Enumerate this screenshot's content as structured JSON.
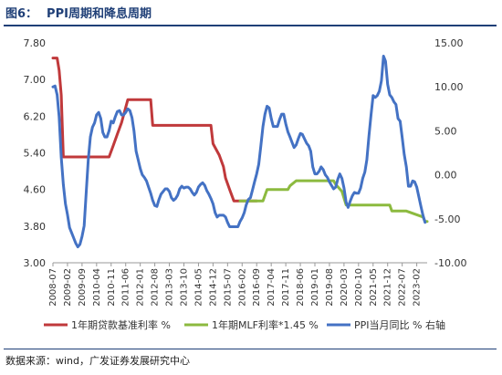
{
  "figure": {
    "label": "图6：",
    "title": "PPI周期和降息周期",
    "source": "数据来源：wind，广发证券发展研究中心"
  },
  "chart_data": {
    "type": "line",
    "title": "PPI周期和降息周期",
    "y_left": {
      "range": [
        3.0,
        7.8
      ],
      "ticks": [
        "7.80",
        "7.00",
        "6.20",
        "5.40",
        "4.60",
        "3.80",
        "3.00"
      ]
    },
    "y_right": {
      "range": [
        -10.0,
        15.0
      ],
      "ticks": [
        "15.00",
        "10.00",
        "5.00",
        "0.00",
        "-5.00",
        "-10.00"
      ]
    },
    "x_ticks": [
      "2008-07",
      "2009-02",
      "2009-09",
      "2010-04",
      "2010-11",
      "2011-06",
      "2012-01",
      "2012-08",
      "2013-03",
      "2013-10",
      "2014-05",
      "2014-12",
      "2015-07",
      "2016-02",
      "2016-09",
      "2017-04",
      "2017-11",
      "2018-06",
      "2019-01",
      "2019-08",
      "2020-03",
      "2020-10",
      "2021-05",
      "2021-12",
      "2022-07",
      "2023-02"
    ],
    "legend_position": "bottom",
    "colors": {
      "lpr": "#c0393b",
      "mlf": "#8cba3f",
      "ppi": "#4472c4"
    },
    "series": [
      {
        "name": "1年期贷款基准利率 %",
        "axis": "left",
        "points": [
          [
            "2008-07",
            7.47
          ],
          [
            "2008-09",
            7.47
          ],
          [
            "2008-10",
            7.2
          ],
          [
            "2008-11",
            6.66
          ],
          [
            "2008-12",
            5.31
          ],
          [
            "2010-10",
            5.31
          ],
          [
            "2010-12",
            5.56
          ],
          [
            "2011-02",
            5.81
          ],
          [
            "2011-04",
            6.06
          ],
          [
            "2011-07",
            6.56
          ],
          [
            "2012-06",
            6.56
          ],
          [
            "2012-07",
            6.0
          ],
          [
            "2014-11",
            6.0
          ],
          [
            "2014-12",
            5.6
          ],
          [
            "2015-03",
            5.35
          ],
          [
            "2015-05",
            5.1
          ],
          [
            "2015-06",
            4.85
          ],
          [
            "2015-08",
            4.6
          ],
          [
            "2015-10",
            4.35
          ],
          [
            "2016-09",
            4.35
          ]
        ]
      },
      {
        "name": "1年期MLF利率*1.45 %",
        "axis": "left",
        "points": [
          [
            "2016-01",
            4.35
          ],
          [
            "2016-12",
            4.35
          ],
          [
            "2017-02",
            4.6
          ],
          [
            "2017-12",
            4.6
          ],
          [
            "2018-01",
            4.68
          ],
          [
            "2018-04",
            4.79
          ],
          [
            "2019-10",
            4.79
          ],
          [
            "2019-11",
            4.71
          ],
          [
            "2020-02",
            4.56
          ],
          [
            "2020-04",
            4.26
          ],
          [
            "2022-01",
            4.26
          ],
          [
            "2022-02",
            4.13
          ],
          [
            "2022-09",
            4.13
          ],
          [
            "2023-05",
            4.0
          ],
          [
            "2023-06",
            3.9
          ],
          [
            "2023-07",
            3.9
          ]
        ]
      },
      {
        "name": "PPI当月同比 % 右轴",
        "axis": "right",
        "points": [
          [
            "2008-07",
            10.0
          ],
          [
            "2008-08",
            10.1
          ],
          [
            "2008-09",
            9.1
          ],
          [
            "2008-10",
            6.6
          ],
          [
            "2008-11",
            2.0
          ],
          [
            "2008-12",
            -1.1
          ],
          [
            "2009-01",
            -3.3
          ],
          [
            "2009-02",
            -4.5
          ],
          [
            "2009-03",
            -6.0
          ],
          [
            "2009-04",
            -6.6
          ],
          [
            "2009-05",
            -7.2
          ],
          [
            "2009-06",
            -7.8
          ],
          [
            "2009-07",
            -8.2
          ],
          [
            "2009-08",
            -7.9
          ],
          [
            "2009-09",
            -7.0
          ],
          [
            "2009-10",
            -5.8
          ],
          [
            "2009-11",
            -2.1
          ],
          [
            "2009-12",
            1.7
          ],
          [
            "2010-01",
            4.3
          ],
          [
            "2010-02",
            5.4
          ],
          [
            "2010-03",
            5.9
          ],
          [
            "2010-04",
            6.8
          ],
          [
            "2010-05",
            7.1
          ],
          [
            "2010-06",
            6.4
          ],
          [
            "2010-07",
            4.8
          ],
          [
            "2010-08",
            4.3
          ],
          [
            "2010-09",
            4.3
          ],
          [
            "2010-10",
            5.0
          ],
          [
            "2010-11",
            6.1
          ],
          [
            "2010-12",
            5.9
          ],
          [
            "2011-01",
            6.6
          ],
          [
            "2011-02",
            7.2
          ],
          [
            "2011-03",
            7.3
          ],
          [
            "2011-04",
            6.8
          ],
          [
            "2011-05",
            6.8
          ],
          [
            "2011-06",
            7.1
          ],
          [
            "2011-07",
            7.5
          ],
          [
            "2011-08",
            7.3
          ],
          [
            "2011-09",
            6.5
          ],
          [
            "2011-10",
            5.0
          ],
          [
            "2011-11",
            2.7
          ],
          [
            "2011-12",
            1.7
          ],
          [
            "2012-01",
            0.7
          ],
          [
            "2012-02",
            0.0
          ],
          [
            "2012-03",
            -0.3
          ],
          [
            "2012-04",
            -0.7
          ],
          [
            "2012-05",
            -1.4
          ],
          [
            "2012-06",
            -2.1
          ],
          [
            "2012-07",
            -2.9
          ],
          [
            "2012-08",
            -3.5
          ],
          [
            "2012-09",
            -3.6
          ],
          [
            "2012-10",
            -2.8
          ],
          [
            "2012-11",
            -2.2
          ],
          [
            "2012-12",
            -1.9
          ],
          [
            "2013-01",
            -1.6
          ],
          [
            "2013-02",
            -1.6
          ],
          [
            "2013-03",
            -1.9
          ],
          [
            "2013-04",
            -2.6
          ],
          [
            "2013-05",
            -2.9
          ],
          [
            "2013-06",
            -2.7
          ],
          [
            "2013-07",
            -2.3
          ],
          [
            "2013-08",
            -1.6
          ],
          [
            "2013-09",
            -1.3
          ],
          [
            "2013-10",
            -1.5
          ],
          [
            "2013-11",
            -1.4
          ],
          [
            "2013-12",
            -1.4
          ],
          [
            "2014-01",
            -1.6
          ],
          [
            "2014-02",
            -2.0
          ],
          [
            "2014-03",
            -2.3
          ],
          [
            "2014-04",
            -2.0
          ],
          [
            "2014-05",
            -1.4
          ],
          [
            "2014-06",
            -1.1
          ],
          [
            "2014-07",
            -0.9
          ],
          [
            "2014-08",
            -1.2
          ],
          [
            "2014-09",
            -1.8
          ],
          [
            "2014-10",
            -2.2
          ],
          [
            "2014-11",
            -2.7
          ],
          [
            "2014-12",
            -3.3
          ],
          [
            "2015-01",
            -4.3
          ],
          [
            "2015-02",
            -4.8
          ],
          [
            "2015-03",
            -4.6
          ],
          [
            "2015-04",
            -4.6
          ],
          [
            "2015-05",
            -4.6
          ],
          [
            "2015-06",
            -4.8
          ],
          [
            "2015-07",
            -5.4
          ],
          [
            "2015-08",
            -5.9
          ],
          [
            "2015-09",
            -5.9
          ],
          [
            "2015-10",
            -5.9
          ],
          [
            "2015-11",
            -5.9
          ],
          [
            "2015-12",
            -5.9
          ],
          [
            "2016-01",
            -5.3
          ],
          [
            "2016-02",
            -4.9
          ],
          [
            "2016-03",
            -4.3
          ],
          [
            "2016-04",
            -3.4
          ],
          [
            "2016-05",
            -2.8
          ],
          [
            "2016-06",
            -2.6
          ],
          [
            "2016-07",
            -1.7
          ],
          [
            "2016-08",
            -0.8
          ],
          [
            "2016-09",
            0.1
          ],
          [
            "2016-10",
            1.2
          ],
          [
            "2016-11",
            3.3
          ],
          [
            "2016-12",
            5.5
          ],
          [
            "2017-01",
            6.9
          ],
          [
            "2017-02",
            7.8
          ],
          [
            "2017-03",
            7.6
          ],
          [
            "2017-04",
            6.4
          ],
          [
            "2017-05",
            5.5
          ],
          [
            "2017-06",
            5.5
          ],
          [
            "2017-07",
            5.5
          ],
          [
            "2017-08",
            6.3
          ],
          [
            "2017-09",
            6.9
          ],
          [
            "2017-10",
            6.9
          ],
          [
            "2017-11",
            5.8
          ],
          [
            "2017-12",
            4.9
          ],
          [
            "2018-01",
            4.3
          ],
          [
            "2018-02",
            3.7
          ],
          [
            "2018-03",
            3.1
          ],
          [
            "2018-04",
            3.4
          ],
          [
            "2018-05",
            4.1
          ],
          [
            "2018-06",
            4.7
          ],
          [
            "2018-07",
            4.6
          ],
          [
            "2018-08",
            4.1
          ],
          [
            "2018-09",
            3.6
          ],
          [
            "2018-10",
            3.3
          ],
          [
            "2018-11",
            2.7
          ],
          [
            "2018-12",
            0.9
          ],
          [
            "2019-01",
            0.1
          ],
          [
            "2019-02",
            0.1
          ],
          [
            "2019-03",
            0.4
          ],
          [
            "2019-04",
            0.9
          ],
          [
            "2019-05",
            0.6
          ],
          [
            "2019-06",
            0.0
          ],
          [
            "2019-07",
            -0.3
          ],
          [
            "2019-08",
            -0.8
          ],
          [
            "2019-09",
            -1.2
          ],
          [
            "2019-10",
            -1.6
          ],
          [
            "2019-11",
            -1.4
          ],
          [
            "2019-12",
            -0.5
          ],
          [
            "2020-01",
            0.1
          ],
          [
            "2020-02",
            -0.4
          ],
          [
            "2020-03",
            -1.5
          ],
          [
            "2020-04",
            -3.1
          ],
          [
            "2020-05",
            -3.7
          ],
          [
            "2020-06",
            -3.0
          ],
          [
            "2020-07",
            -2.4
          ],
          [
            "2020-08",
            -2.0
          ],
          [
            "2020-09",
            -2.1
          ],
          [
            "2020-10",
            -2.1
          ],
          [
            "2020-11",
            -1.5
          ],
          [
            "2020-12",
            -0.4
          ],
          [
            "2021-01",
            0.3
          ],
          [
            "2021-02",
            1.7
          ],
          [
            "2021-03",
            4.4
          ],
          [
            "2021-04",
            6.8
          ],
          [
            "2021-05",
            9.0
          ],
          [
            "2021-06",
            8.8
          ],
          [
            "2021-07",
            9.0
          ],
          [
            "2021-08",
            9.5
          ],
          [
            "2021-09",
            10.7
          ],
          [
            "2021-10",
            13.5
          ],
          [
            "2021-11",
            12.9
          ],
          [
            "2021-12",
            10.3
          ],
          [
            "2022-01",
            9.1
          ],
          [
            "2022-02",
            8.8
          ],
          [
            "2022-03",
            8.3
          ],
          [
            "2022-04",
            8.0
          ],
          [
            "2022-05",
            6.4
          ],
          [
            "2022-06",
            6.1
          ],
          [
            "2022-07",
            4.2
          ],
          [
            "2022-08",
            2.3
          ],
          [
            "2022-09",
            0.9
          ],
          [
            "2022-10",
            -1.3
          ],
          [
            "2022-11",
            -1.3
          ],
          [
            "2022-12",
            -0.7
          ],
          [
            "2023-01",
            -0.8
          ],
          [
            "2023-02",
            -1.4
          ],
          [
            "2023-03",
            -2.5
          ],
          [
            "2023-04",
            -3.6
          ],
          [
            "2023-05",
            -4.6
          ],
          [
            "2023-06",
            -5.4
          ]
        ]
      }
    ]
  }
}
